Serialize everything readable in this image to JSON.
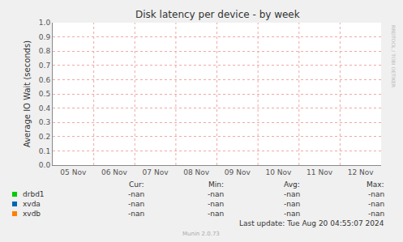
{
  "chart_data": {
    "type": "line",
    "title": "Disk latency per device - by week",
    "y_label": "Average IO Wait (seconds)",
    "categories": [
      "05 Nov",
      "06 Nov",
      "07 Nov",
      "08 Nov",
      "09 Nov",
      "10 Nov",
      "11 Nov",
      "12 Nov"
    ],
    "series": [
      {
        "name": "drbd1",
        "color": "#00cc00",
        "values": [
          null,
          null,
          null,
          null,
          null,
          null,
          null,
          null
        ],
        "stats": [
          "-nan",
          "-nan",
          "-nan",
          "-nan"
        ]
      },
      {
        "name": "xvda",
        "color": "#0066b3",
        "values": [
          null,
          null,
          null,
          null,
          null,
          null,
          null,
          null
        ],
        "stats": [
          "-nan",
          "-nan",
          "-nan",
          "-nan"
        ]
      },
      {
        "name": "xvdb",
        "color": "#ff8000",
        "values": [
          null,
          null,
          null,
          null,
          null,
          null,
          null,
          null
        ],
        "stats": [
          "-nan",
          "-nan",
          "-nan",
          "-nan"
        ]
      }
    ],
    "stats_columns": [
      "Cur:",
      "Min:",
      "Avg:",
      "Max:"
    ],
    "ylim": [
      0,
      1
    ],
    "yticks": [
      {
        "value": 0,
        "label": "0.0"
      },
      {
        "value": 0.1,
        "label": "0.1"
      },
      {
        "value": 0.2,
        "label": "0.2"
      },
      {
        "value": 0.3,
        "label": "0.3"
      },
      {
        "value": 0.4,
        "label": "0.4"
      },
      {
        "value": 0.5,
        "label": "0.5"
      },
      {
        "value": 0.6,
        "label": "0.6"
      },
      {
        "value": 0.7,
        "label": "0.7"
      },
      {
        "value": 0.8,
        "label": "0.8"
      },
      {
        "value": 0.9,
        "label": "0.9"
      },
      {
        "value": 1,
        "label": "1.0"
      }
    ],
    "grid": true,
    "annotations": [
      "Last update: Tue Aug 20 04:55:07 2024",
      "Munin 2.0.73",
      "RRDTOOL / TOBI OETIKER"
    ]
  }
}
